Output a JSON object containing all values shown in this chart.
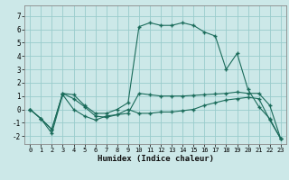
{
  "title": "",
  "xlabel": "Humidex (Indice chaleur)",
  "xlim": [
    -0.5,
    23.5
  ],
  "ylim": [
    -2.6,
    7.8
  ],
  "yticks": [
    -2,
    -1,
    0,
    1,
    2,
    3,
    4,
    5,
    6,
    7
  ],
  "xticks": [
    0,
    1,
    2,
    3,
    4,
    5,
    6,
    7,
    8,
    9,
    10,
    11,
    12,
    13,
    14,
    15,
    16,
    17,
    18,
    19,
    20,
    21,
    22,
    23
  ],
  "bg_color": "#cce8e8",
  "grid_color": "#99cccc",
  "line_color": "#1a6b5a",
  "series1": [
    0.0,
    -0.7,
    -1.5,
    1.2,
    1.1,
    0.3,
    -0.3,
    -0.3,
    0.0,
    0.5,
    6.2,
    6.5,
    6.3,
    6.3,
    6.5,
    6.3,
    5.8,
    5.5,
    3.0,
    4.2,
    1.5,
    0.2,
    -0.7,
    -2.2
  ],
  "series2": [
    0.0,
    -0.7,
    -1.5,
    1.2,
    0.8,
    0.2,
    -0.5,
    -0.6,
    -0.4,
    -0.3,
    1.2,
    1.1,
    1.0,
    1.0,
    1.0,
    1.05,
    1.1,
    1.15,
    1.2,
    1.3,
    1.2,
    1.2,
    0.3,
    -2.2
  ],
  "series3": [
    0.0,
    -0.7,
    -1.8,
    1.1,
    0.0,
    -0.5,
    -0.8,
    -0.5,
    -0.4,
    0.0,
    -0.3,
    -0.3,
    -0.2,
    -0.2,
    -0.1,
    0.0,
    0.3,
    0.5,
    0.7,
    0.8,
    0.9,
    0.8,
    -0.8,
    -2.2
  ]
}
